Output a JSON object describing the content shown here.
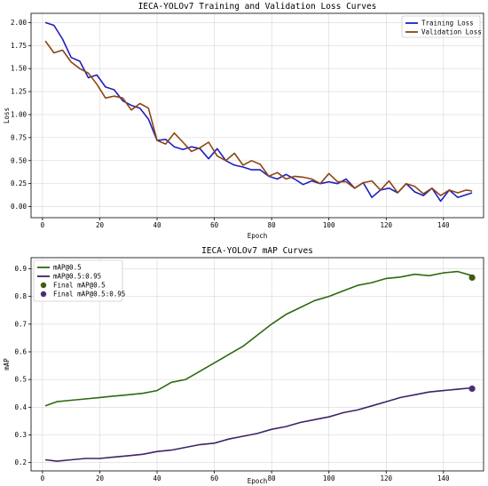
{
  "chart_data": [
    {
      "type": "line",
      "title": "IECA-YOLOv7 Training and Validation Loss Curves",
      "xlabel": "Epoch",
      "ylabel": "Loss",
      "xlim": [
        -4,
        154
      ],
      "ylim": [
        -0.12,
        2.1
      ],
      "xticks": [
        0,
        20,
        40,
        60,
        80,
        100,
        120,
        140
      ],
      "yticks": [
        0.0,
        0.25,
        0.5,
        0.75,
        1.0,
        1.25,
        1.5,
        1.75,
        2.0
      ],
      "ytick_labels": [
        "0.00",
        "0.25",
        "0.50",
        "0.75",
        "1.00",
        "1.25",
        "1.50",
        "1.75",
        "2.00"
      ],
      "grid": true,
      "legend_position": "top-right",
      "series": [
        {
          "name": "Training Loss",
          "color": "#1f1fbf",
          "x": [
            1,
            4,
            7,
            10,
            13,
            16,
            19,
            22,
            25,
            28,
            31,
            34,
            37,
            40,
            43,
            46,
            49,
            52,
            55,
            58,
            61,
            64,
            67,
            70,
            73,
            76,
            79,
            82,
            85,
            88,
            91,
            94,
            97,
            100,
            103,
            106,
            109,
            112,
            115,
            118,
            121,
            124,
            127,
            130,
            133,
            136,
            139,
            142,
            145,
            148,
            150
          ],
          "y": [
            2.0,
            1.97,
            1.82,
            1.62,
            1.58,
            1.4,
            1.43,
            1.3,
            1.27,
            1.15,
            1.1,
            1.07,
            0.95,
            0.72,
            0.73,
            0.65,
            0.62,
            0.65,
            0.63,
            0.52,
            0.63,
            0.5,
            0.45,
            0.43,
            0.4,
            0.4,
            0.33,
            0.3,
            0.35,
            0.3,
            0.24,
            0.28,
            0.25,
            0.27,
            0.25,
            0.3,
            0.2,
            0.26,
            0.1,
            0.18,
            0.2,
            0.15,
            0.25,
            0.16,
            0.12,
            0.2,
            0.06,
            0.18,
            0.1,
            0.13,
            0.15
          ]
        },
        {
          "name": "Validation Loss",
          "color": "#8b4513",
          "x": [
            1,
            4,
            7,
            10,
            13,
            16,
            19,
            22,
            25,
            28,
            31,
            34,
            37,
            40,
            43,
            46,
            49,
            52,
            55,
            58,
            61,
            64,
            67,
            70,
            73,
            76,
            79,
            82,
            85,
            88,
            91,
            94,
            97,
            100,
            103,
            106,
            109,
            112,
            115,
            118,
            121,
            124,
            127,
            130,
            133,
            136,
            139,
            142,
            145,
            148,
            150
          ],
          "y": [
            1.8,
            1.67,
            1.7,
            1.57,
            1.5,
            1.45,
            1.33,
            1.18,
            1.2,
            1.18,
            1.05,
            1.12,
            1.07,
            0.72,
            0.68,
            0.8,
            0.7,
            0.6,
            0.64,
            0.7,
            0.55,
            0.5,
            0.58,
            0.45,
            0.5,
            0.46,
            0.33,
            0.37,
            0.3,
            0.33,
            0.32,
            0.3,
            0.25,
            0.36,
            0.27,
            0.27,
            0.2,
            0.26,
            0.28,
            0.18,
            0.28,
            0.15,
            0.25,
            0.22,
            0.14,
            0.2,
            0.12,
            0.18,
            0.15,
            0.18,
            0.17
          ]
        }
      ]
    },
    {
      "type": "line",
      "title": "IECA-YOLOv7 mAP Curves",
      "xlabel": "Epoch",
      "ylabel": "mAP",
      "xlim": [
        -4,
        154
      ],
      "ylim": [
        0.17,
        0.94
      ],
      "xticks": [
        0,
        20,
        40,
        60,
        80,
        100,
        120,
        140
      ],
      "yticks": [
        0.2,
        0.3,
        0.4,
        0.5,
        0.6,
        0.7,
        0.8,
        0.9
      ],
      "ytick_labels": [
        "0.2",
        "0.3",
        "0.4",
        "0.5",
        "0.6",
        "0.7",
        "0.8",
        "0.9"
      ],
      "grid": true,
      "legend_position": "top-left",
      "series": [
        {
          "name": "mAP@0.5",
          "color": "#2d6a0f",
          "x": [
            1,
            5,
            10,
            15,
            20,
            25,
            30,
            35,
            40,
            45,
            50,
            55,
            60,
            65,
            70,
            75,
            80,
            85,
            90,
            95,
            100,
            105,
            110,
            115,
            120,
            125,
            130,
            135,
            140,
            145,
            150
          ],
          "y": [
            0.405,
            0.42,
            0.425,
            0.43,
            0.435,
            0.44,
            0.445,
            0.45,
            0.46,
            0.49,
            0.5,
            0.53,
            0.56,
            0.59,
            0.62,
            0.66,
            0.7,
            0.735,
            0.76,
            0.785,
            0.8,
            0.82,
            0.84,
            0.85,
            0.865,
            0.87,
            0.88,
            0.875,
            0.885,
            0.89,
            0.875
          ]
        },
        {
          "name": "mAP@0.5:0.95",
          "color": "#3d2466",
          "x": [
            1,
            5,
            10,
            15,
            20,
            25,
            30,
            35,
            40,
            45,
            50,
            55,
            60,
            65,
            70,
            75,
            80,
            85,
            90,
            95,
            100,
            105,
            110,
            115,
            120,
            125,
            130,
            135,
            140,
            145,
            150
          ],
          "y": [
            0.21,
            0.205,
            0.21,
            0.215,
            0.215,
            0.22,
            0.225,
            0.23,
            0.24,
            0.245,
            0.255,
            0.265,
            0.27,
            0.285,
            0.295,
            0.305,
            0.32,
            0.33,
            0.345,
            0.355,
            0.365,
            0.38,
            0.39,
            0.405,
            0.42,
            0.435,
            0.445,
            0.455,
            0.46,
            0.465,
            0.47
          ]
        },
        {
          "name": "Final mAP@0.5",
          "color": "#3f5b15",
          "marker": "point",
          "x": [
            150
          ],
          "y": [
            0.868
          ]
        },
        {
          "name": "Final mAP@0.5:0.95",
          "color": "#4a2d7a",
          "marker": "point",
          "x": [
            150
          ],
          "y": [
            0.467
          ]
        }
      ]
    }
  ]
}
